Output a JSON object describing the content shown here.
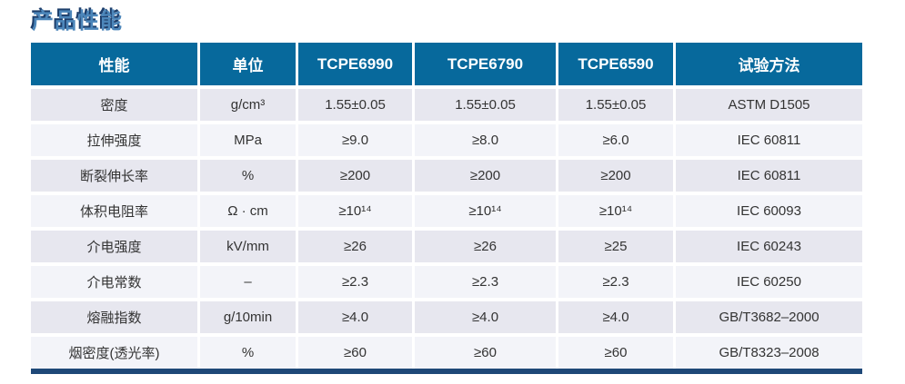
{
  "page_title": "产品性能",
  "colors": {
    "header_bg": "#07699c",
    "row_odd_bg": "#e7e7ef",
    "row_even_bg": "#f3f4f9",
    "bottom_border": "#1e4878",
    "title_fill": "#4c86ba",
    "title_shadow": "#1d3e6b",
    "header_text": "#ffffff",
    "cell_text": "#333333"
  },
  "table": {
    "columns": [
      "性能",
      "单位",
      "TCPE6990",
      "TCPE6790",
      "TCPE6590",
      "试验方法"
    ],
    "rows": [
      [
        "密度",
        "g/cm³",
        "1.55±0.05",
        "1.55±0.05",
        "1.55±0.05",
        "ASTM D1505"
      ],
      [
        "拉伸强度",
        "MPa",
        "≥9.0",
        "≥8.0",
        "≥6.0",
        "IEC 60811"
      ],
      [
        "断裂伸长率",
        "%",
        "≥200",
        "≥200",
        "≥200",
        "IEC 60811"
      ],
      [
        "体积电阻率",
        "Ω · cm",
        "≥10¹⁴",
        "≥10¹⁴",
        "≥10¹⁴",
        "IEC 60093"
      ],
      [
        "介电强度",
        "kV/mm",
        "≥26",
        "≥26",
        "≥25",
        "IEC 60243"
      ],
      [
        "介电常数",
        "–",
        "≥2.3",
        "≥2.3",
        "≥2.3",
        "IEC 60250"
      ],
      [
        "熔融指数",
        "g/10min",
        "≥4.0",
        "≥4.0",
        "≥4.0",
        "GB/T3682–2000"
      ],
      [
        "烟密度(透光率)",
        "%",
        "≥60",
        "≥60",
        "≥60",
        "GB/T8323–2008"
      ]
    ]
  }
}
